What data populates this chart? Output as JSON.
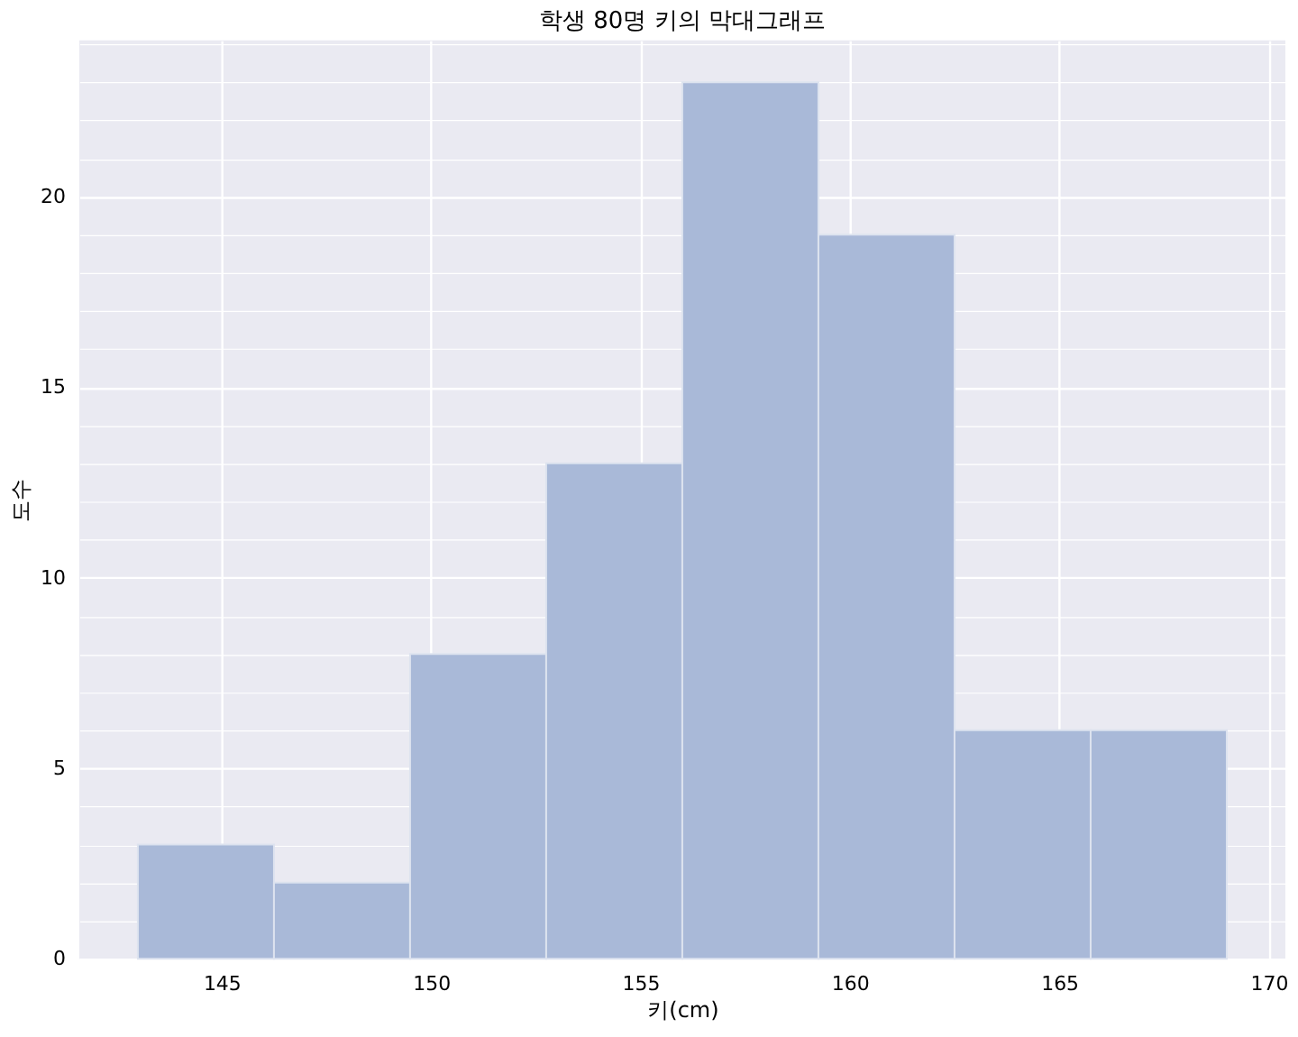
{
  "chart_data": {
    "type": "histogram",
    "title": "학생 80명 키의 막대그래프",
    "xlabel": "키(cm)",
    "ylabel": "도수",
    "bins": [
      143,
      146.25,
      149.5,
      152.75,
      156,
      159.25,
      162.5,
      165.75,
      169
    ],
    "values": [
      3,
      2,
      8,
      13,
      23,
      19,
      6,
      6
    ],
    "color": "#a9b9d8",
    "xlim": [
      141.6,
      170.4
    ],
    "xticks": [
      145,
      150,
      155,
      160,
      165,
      170
    ],
    "ylim": [
      0,
      24.1
    ],
    "yticks": [
      0,
      {
        "value": 1,
        "label": null
      },
      {
        "value": 2,
        "label": null
      },
      {
        "value": 3,
        "label": null
      },
      {
        "value": 4,
        "label": null
      },
      5,
      {
        "value": 6,
        "label": null
      },
      {
        "value": 7,
        "label": null
      },
      {
        "value": 8,
        "label": null
      },
      {
        "value": 9,
        "label": null
      },
      10,
      {
        "value": 11,
        "label": null
      },
      {
        "value": 12,
        "label": null
      },
      {
        "value": 13,
        "label": null
      },
      {
        "value": 14,
        "label": null
      },
      15,
      {
        "value": 16,
        "label": null
      },
      {
        "value": 17,
        "label": null
      },
      {
        "value": 18,
        "label": null
      },
      {
        "value": 19,
        "label": null
      },
      20,
      {
        "value": 21,
        "label": null
      },
      {
        "value": 22,
        "label": null
      },
      {
        "value": 23,
        "label": null
      },
      {
        "value": 24,
        "label": null
      }
    ],
    "grid": true
  }
}
